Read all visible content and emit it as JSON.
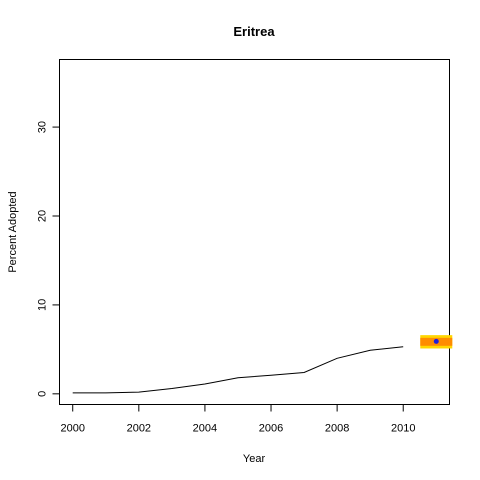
{
  "chart_data": {
    "type": "line",
    "title": "Eritrea",
    "xlabel": "Year",
    "ylabel": "Percent Adopted",
    "xlim": [
      1999.6,
      2011.4
    ],
    "ylim": [
      -1.2,
      37.6
    ],
    "x_ticks": [
      "2000",
      "2002",
      "2004",
      "2006",
      "2008",
      "2010"
    ],
    "y_ticks": [
      "0",
      "10",
      "20",
      "30"
    ],
    "grid": false,
    "series": [
      {
        "x": [
          2000,
          2001,
          2002,
          2003,
          2004,
          2005,
          2006,
          2007,
          2008,
          2009,
          2010
        ],
        "values": [
          0.1,
          0.1,
          0.2,
          0.6,
          1.1,
          1.8,
          2.1,
          2.4,
          4.0,
          4.9,
          5.3
        ]
      }
    ],
    "projection": {
      "x": 2011,
      "value": 5.9,
      "outer_range": [
        5.1,
        6.6
      ],
      "inner_range": [
        5.4,
        6.3
      ],
      "outer_color": "#FFD700",
      "inner_color": "#FF8C00",
      "point_color": "#1E1EDC"
    },
    "line_color": "#000000"
  }
}
